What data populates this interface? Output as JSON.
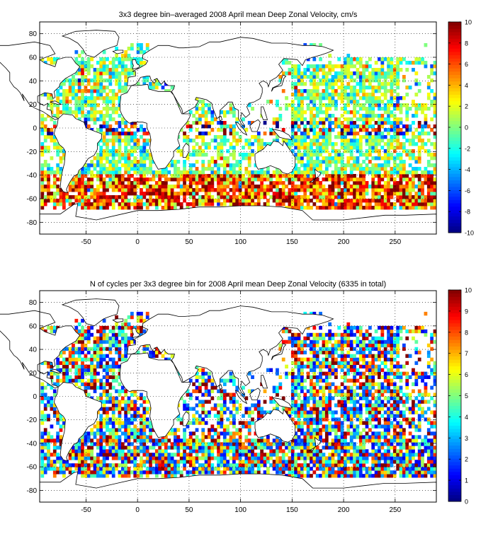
{
  "colors": {
    "land": "#ffffff",
    "coast": "#000000",
    "frame": "#000000",
    "grid": "#000000",
    "colormap": "jet"
  },
  "chart_data": [
    {
      "type": "heatmap",
      "title": "3x3 degree bin–averaged 2008 April mean Deep Zonal Velocity, cm/s",
      "xlabel": "",
      "ylabel": "",
      "xlim": [
        -95,
        290
      ],
      "ylim": [
        -90,
        90
      ],
      "x_ticks": [
        -50,
        0,
        50,
        100,
        150,
        200,
        250
      ],
      "y_ticks": [
        -80,
        -60,
        -40,
        -20,
        0,
        20,
        40,
        60,
        80
      ],
      "bin_size_deg": 3,
      "colorbar": {
        "range": [
          -10,
          10
        ],
        "ticks": [
          -10,
          -8,
          -6,
          -4,
          -2,
          0,
          2,
          4,
          6,
          8,
          10
        ]
      },
      "grid": "dotted"
    },
    {
      "type": "heatmap",
      "title": "N of cycles per 3x3 degree bin for 2008 April mean Deep Zonal Velocity (6335 in total)",
      "xlabel": "",
      "ylabel": "",
      "xlim": [
        -95,
        290
      ],
      "ylim": [
        -90,
        90
      ],
      "x_ticks": [
        -50,
        0,
        50,
        100,
        150,
        200,
        250
      ],
      "y_ticks": [
        -80,
        -60,
        -40,
        -20,
        0,
        20,
        40,
        60,
        80
      ],
      "bin_size_deg": 3,
      "total_cycles": 6335,
      "colorbar": {
        "range": [
          0,
          10
        ],
        "ticks": [
          0,
          1,
          2,
          3,
          4,
          5,
          6,
          7,
          8,
          9,
          10
        ]
      },
      "grid": "dotted"
    }
  ]
}
